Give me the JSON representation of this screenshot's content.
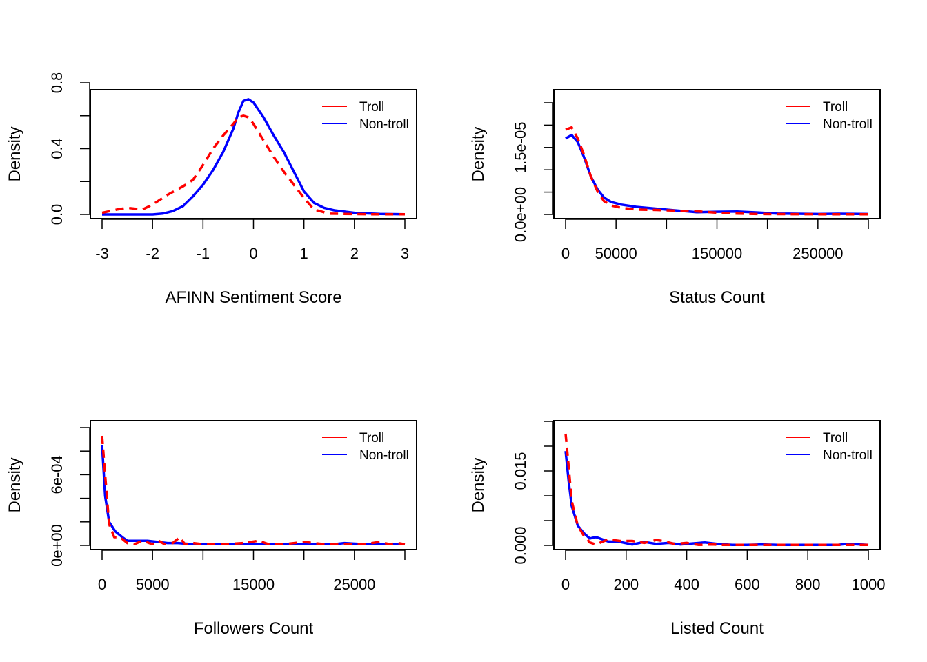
{
  "legend_position": "top-right",
  "colors": {
    "troll": "#ff0000",
    "non_troll": "#0000ff"
  },
  "chart_data": [
    {
      "type": "line",
      "xlabel": "AFINN Sentiment Score",
      "ylabel": "Density",
      "xlim": [
        -3,
        3
      ],
      "ylim": [
        0,
        0.8
      ],
      "x_ticks": [
        -3,
        -2,
        -1,
        0,
        1,
        2,
        3
      ],
      "x_tick_labels": [
        "-3",
        "-2",
        "-1",
        "0",
        "1",
        "2",
        "3"
      ],
      "y_ticks": [
        0,
        0.2,
        0.4,
        0.6,
        0.8
      ],
      "y_tick_labels": [
        "0.0",
        "",
        "0.4",
        "",
        "0.8"
      ],
      "grid": false,
      "legend": [
        "Troll",
        "Non-troll"
      ],
      "series": [
        {
          "name": "Troll",
          "style": "dashed",
          "color": "#ff0000",
          "x": [
            -3,
            -2.7,
            -2.5,
            -2.2,
            -2,
            -1.7,
            -1.4,
            -1.2,
            -1,
            -0.8,
            -0.6,
            -0.4,
            -0.3,
            -0.2,
            -0.1,
            0,
            0.2,
            0.4,
            0.6,
            0.8,
            1,
            1.2,
            1.5,
            2,
            2.5,
            3
          ],
          "y": [
            0.01,
            0.03,
            0.04,
            0.03,
            0.06,
            0.12,
            0.17,
            0.21,
            0.3,
            0.4,
            0.48,
            0.55,
            0.59,
            0.6,
            0.59,
            0.55,
            0.45,
            0.35,
            0.26,
            0.18,
            0.1,
            0.03,
            0.005,
            0.002,
            0.001,
            0.001
          ]
        },
        {
          "name": "Non-troll",
          "style": "solid",
          "color": "#0000ff",
          "x": [
            -3,
            -2.5,
            -2,
            -1.8,
            -1.6,
            -1.4,
            -1.2,
            -1,
            -0.8,
            -0.6,
            -0.4,
            -0.3,
            -0.2,
            -0.1,
            0,
            0.2,
            0.4,
            0.6,
            0.8,
            1,
            1.2,
            1.4,
            1.6,
            2,
            2.5,
            3
          ],
          "y": [
            0,
            0,
            0,
            0.005,
            0.02,
            0.05,
            0.11,
            0.18,
            0.27,
            0.38,
            0.52,
            0.62,
            0.69,
            0.7,
            0.68,
            0.59,
            0.48,
            0.38,
            0.26,
            0.14,
            0.07,
            0.04,
            0.025,
            0.01,
            0.003,
            0.001
          ]
        }
      ]
    },
    {
      "type": "line",
      "xlabel": "Status Count",
      "ylabel": "Density",
      "xlim": [
        0,
        300000
      ],
      "ylim": [
        0,
        2.5e-05
      ],
      "x_ticks": [
        0,
        50000,
        100000,
        150000,
        200000,
        250000,
        300000
      ],
      "x_tick_labels": [
        "0",
        "50000",
        "",
        "150000",
        "",
        "250000",
        ""
      ],
      "y_ticks": [
        0,
        5e-06,
        1e-05,
        1.5e-05,
        2e-05,
        2.5e-05
      ],
      "y_tick_labels": [
        "0.0e+00",
        "",
        "",
        "1.5e-05",
        "",
        ""
      ],
      "grid": false,
      "legend": [
        "Troll",
        "Non-troll"
      ],
      "series": [
        {
          "name": "Troll",
          "style": "dashed",
          "color": "#ff0000",
          "x": [
            0,
            6000,
            12000,
            18000,
            25000,
            32000,
            38000,
            45000,
            55000,
            70000,
            90000,
            110000,
            130000,
            150000,
            170000,
            190000,
            210000,
            250000,
            300000
          ],
          "y": [
            1.9e-05,
            1.95e-05,
            1.7e-05,
            1.35e-05,
            8.5e-06,
            5e-06,
            3e-06,
            2e-06,
            1.5e-06,
            1.1e-06,
            1e-06,
            8.5e-07,
            7e-07,
            4e-07,
            2e-07,
            1e-07,
            8e-08,
            5e-08,
            3e-08
          ]
        },
        {
          "name": "Non-troll",
          "style": "solid",
          "color": "#0000ff",
          "x": [
            0,
            6000,
            12000,
            18000,
            25000,
            32000,
            38000,
            45000,
            55000,
            70000,
            90000,
            110000,
            130000,
            150000,
            170000,
            190000,
            210000,
            250000,
            270000,
            300000
          ],
          "y": [
            1.7e-05,
            1.78e-05,
            1.62e-05,
            1.3e-05,
            8.5e-06,
            5.5e-06,
            3.8e-06,
            2.8e-06,
            2.2e-06,
            1.7e-06,
            1.3e-06,
            9e-07,
            5e-07,
            6e-07,
            6.5e-07,
            4.5e-07,
            2e-07,
            1e-07,
            1.5e-07,
            1e-07
          ]
        }
      ]
    },
    {
      "type": "line",
      "xlabel": "Followers Count",
      "ylabel": "Density",
      "xlim": [
        0,
        30000
      ],
      "ylim": [
        0,
        0.001
      ],
      "x_ticks": [
        0,
        5000,
        10000,
        15000,
        20000,
        25000,
        30000
      ],
      "x_tick_labels": [
        "0",
        "5000",
        "",
        "15000",
        "",
        "25000",
        ""
      ],
      "y_ticks": [
        0,
        0.0002,
        0.0004,
        0.0006,
        0.0008,
        0.001
      ],
      "y_tick_labels": [
        "0e+00",
        "",
        "",
        "6e-04",
        "",
        ""
      ],
      "grid": false,
      "legend": [
        "Troll",
        "Non-troll"
      ],
      "series": [
        {
          "name": "Troll",
          "style": "dashed",
          "color": "#ff0000",
          "x": [
            0,
            300,
            700,
            1200,
            1800,
            2500,
            3200,
            4000,
            5000,
            5600,
            6200,
            7000,
            7700,
            8200,
            9000,
            10000,
            12000,
            14000,
            15500,
            16500,
            18000,
            20000,
            22000,
            24000,
            26000,
            27500,
            28500,
            29300,
            30000
          ],
          "y": [
            0.00093,
            0.0006,
            0.00018,
            7e-05,
            7e-05,
            2e-05,
            1e-05,
            4e-05,
            1e-05,
            4e-05,
            1e-05,
            2e-05,
            7e-05,
            1e-05,
            2e-05,
            1e-05,
            1e-05,
            2e-05,
            4e-05,
            1e-05,
            1e-05,
            3e-05,
            1e-05,
            1e-05,
            1e-05,
            3e-05,
            1e-05,
            2e-05,
            1e-05
          ]
        },
        {
          "name": "Non-troll",
          "style": "solid",
          "color": "#0000ff",
          "x": [
            0,
            300,
            700,
            1300,
            2000,
            2500,
            3500,
            4500,
            5500,
            6500,
            7500,
            9000,
            11000,
            13000,
            15000,
            17000,
            20000,
            23000,
            24000,
            26000,
            28000,
            30000
          ],
          "y": [
            0.00085,
            0.00042,
            0.0002,
            0.00012,
            7e-05,
            4e-05,
            4e-05,
            4e-05,
            3e-05,
            2e-05,
            2e-05,
            1e-05,
            1e-05,
            1e-05,
            1e-05,
            1e-05,
            1e-05,
            1e-05,
            2e-05,
            1e-05,
            1e-05,
            1e-05
          ]
        }
      ]
    },
    {
      "type": "line",
      "xlabel": "Listed Count",
      "ylabel": "Density",
      "xlim": [
        0,
        1000
      ],
      "ylim": [
        0,
        0.025
      ],
      "x_ticks": [
        0,
        200,
        400,
        600,
        800,
        1000
      ],
      "x_tick_labels": [
        "0",
        "200",
        "400",
        "600",
        "800",
        "1000"
      ],
      "y_ticks": [
        0,
        0.005,
        0.01,
        0.015,
        0.02,
        0.025
      ],
      "y_tick_labels": [
        "0.000",
        "",
        "",
        "0.015",
        "",
        ""
      ],
      "grid": false,
      "legend": [
        "Troll",
        "Non-troll"
      ],
      "series": [
        {
          "name": "Troll",
          "style": "dashed",
          "color": "#ff0000",
          "x": [
            0,
            10,
            20,
            40,
            60,
            80,
            100,
            140,
            180,
            220,
            260,
            300,
            320,
            360,
            400,
            440,
            480,
            520,
            600,
            700,
            800,
            900,
            950,
            1000
          ],
          "y": [
            0.0225,
            0.016,
            0.009,
            0.004,
            0.002,
            0.0006,
            0.0002,
            0.0012,
            0.0009,
            0.0009,
            0.0005,
            0.0011,
            0.0009,
            0.0003,
            0.0005,
            0.0001,
            0.0002,
            0.0001,
            0.0001,
            0.0001,
            0.0001,
            0.0001,
            0.0001,
            0.0001
          ]
        },
        {
          "name": "Non-troll",
          "style": "solid",
          "color": "#0000ff",
          "x": [
            0,
            10,
            20,
            40,
            60,
            80,
            100,
            140,
            180,
            220,
            260,
            300,
            340,
            380,
            420,
            460,
            500,
            550,
            600,
            650,
            700,
            800,
            900,
            930,
            1000
          ],
          "y": [
            0.019,
            0.013,
            0.008,
            0.004,
            0.0025,
            0.0014,
            0.0017,
            0.0008,
            0.0007,
            0.0002,
            0.0007,
            0.0003,
            0.0005,
            0.0002,
            0.0004,
            0.0006,
            0.0003,
            0.0001,
            0.0001,
            0.0002,
            0.0001,
            0.0001,
            0.0001,
            0.0003,
            0.0001
          ]
        }
      ]
    }
  ]
}
